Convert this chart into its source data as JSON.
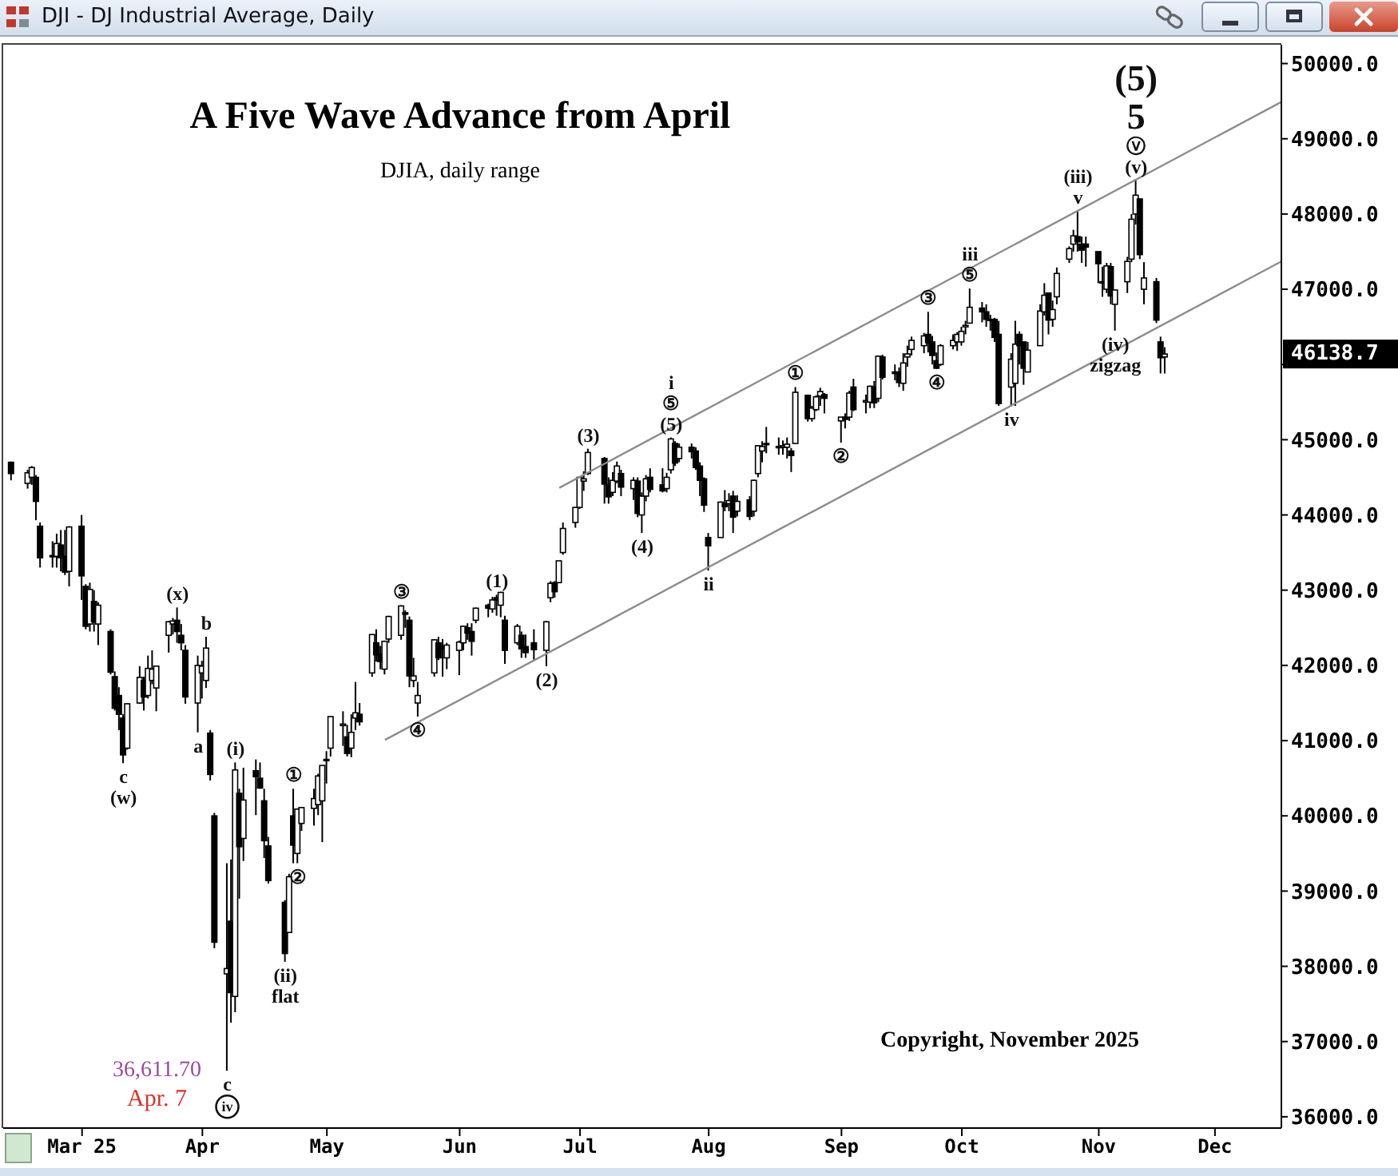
{
  "chart_data": {
    "type": "candlestick",
    "title": "A Five Wave Advance from April",
    "subtitle": "DJIA, daily range",
    "color": "#000000",
    "x": [
      "2025-02-14",
      "2025-02-18",
      "2025-02-19",
      "2025-02-20",
      "2025-02-21",
      "2025-02-24",
      "2025-02-25",
      "2025-02-26",
      "2025-02-27",
      "2025-02-28",
      "2025-03-03",
      "2025-03-04",
      "2025-03-05",
      "2025-03-06",
      "2025-03-07",
      "2025-03-10",
      "2025-03-11",
      "2025-03-12",
      "2025-03-13",
      "2025-03-14",
      "2025-03-17",
      "2025-03-18",
      "2025-03-19",
      "2025-03-20",
      "2025-03-21",
      "2025-03-24",
      "2025-03-25",
      "2025-03-26",
      "2025-03-27",
      "2025-03-28",
      "2025-03-31",
      "2025-04-01",
      "2025-04-02",
      "2025-04-03",
      "2025-04-04",
      "2025-04-07",
      "2025-04-08",
      "2025-04-09",
      "2025-04-10",
      "2025-04-11",
      "2025-04-14",
      "2025-04-15",
      "2025-04-16",
      "2025-04-17",
      "2025-04-21",
      "2025-04-22",
      "2025-04-23",
      "2025-04-24",
      "2025-04-25",
      "2025-04-28",
      "2025-04-29",
      "2025-04-30",
      "2025-05-01",
      "2025-05-02",
      "2025-05-05",
      "2025-05-06",
      "2025-05-07",
      "2025-05-08",
      "2025-05-09",
      "2025-05-12",
      "2025-05-13",
      "2025-05-14",
      "2025-05-15",
      "2025-05-16",
      "2025-05-19",
      "2025-05-20",
      "2025-05-21",
      "2025-05-22",
      "2025-05-23",
      "2025-05-27",
      "2025-05-28",
      "2025-05-29",
      "2025-05-30",
      "2025-06-02",
      "2025-06-03",
      "2025-06-04",
      "2025-06-05",
      "2025-06-06",
      "2025-06-09",
      "2025-06-10",
      "2025-06-11",
      "2025-06-12",
      "2025-06-13",
      "2025-06-16",
      "2025-06-17",
      "2025-06-18",
      "2025-06-20",
      "2025-06-23",
      "2025-06-24",
      "2025-06-25",
      "2025-06-26",
      "2025-06-27",
      "2025-06-30",
      "2025-07-01",
      "2025-07-02",
      "2025-07-03",
      "2025-07-07",
      "2025-07-08",
      "2025-07-09",
      "2025-07-10",
      "2025-07-11",
      "2025-07-14",
      "2025-07-15",
      "2025-07-16",
      "2025-07-17",
      "2025-07-18",
      "2025-07-21",
      "2025-07-22",
      "2025-07-23",
      "2025-07-24",
      "2025-07-25",
      "2025-07-28",
      "2025-07-29",
      "2025-07-30",
      "2025-07-31",
      "2025-08-01",
      "2025-08-04",
      "2025-08-05",
      "2025-08-06",
      "2025-08-07",
      "2025-08-08",
      "2025-08-11",
      "2025-08-12",
      "2025-08-13",
      "2025-08-14",
      "2025-08-15",
      "2025-08-18",
      "2025-08-19",
      "2025-08-20",
      "2025-08-21",
      "2025-08-22",
      "2025-08-25",
      "2025-08-26",
      "2025-08-27",
      "2025-08-28",
      "2025-08-29",
      "2025-09-02",
      "2025-09-03",
      "2025-09-04",
      "2025-09-05",
      "2025-09-08",
      "2025-09-09",
      "2025-09-10",
      "2025-09-11",
      "2025-09-12",
      "2025-09-15",
      "2025-09-16",
      "2025-09-17",
      "2025-09-18",
      "2025-09-19",
      "2025-09-22",
      "2025-09-23",
      "2025-09-24",
      "2025-09-25",
      "2025-09-26",
      "2025-09-29",
      "2025-09-30",
      "2025-10-01",
      "2025-10-02",
      "2025-10-03",
      "2025-10-06",
      "2025-10-07",
      "2025-10-08",
      "2025-10-09",
      "2025-10-10",
      "2025-10-13",
      "2025-10-14",
      "2025-10-15",
      "2025-10-16",
      "2025-10-17",
      "2025-10-20",
      "2025-10-21",
      "2025-10-22",
      "2025-10-23",
      "2025-10-24",
      "2025-10-27",
      "2025-10-28",
      "2025-10-29",
      "2025-10-30",
      "2025-10-31",
      "2025-11-03",
      "2025-11-04",
      "2025-11-05",
      "2025-11-06",
      "2025-11-07",
      "2025-11-10",
      "2025-11-11",
      "2025-11-12",
      "2025-11-13",
      "2025-11-14",
      "2025-11-17",
      "2025-11-18",
      "2025-11-19"
    ],
    "ohlc": [
      [
        44700,
        44710,
        44460,
        44550
      ],
      [
        44420,
        44600,
        44350,
        44560
      ],
      [
        44500,
        44650,
        44400,
        44630
      ],
      [
        44500,
        44530,
        43930,
        44180
      ],
      [
        43850,
        43900,
        43300,
        43430
      ],
      [
        43450,
        43650,
        43300,
        43460
      ],
      [
        43450,
        43750,
        43300,
        43620
      ],
      [
        43600,
        43800,
        43250,
        43430
      ],
      [
        43450,
        43800,
        43200,
        43240
      ],
      [
        43250,
        43850,
        43050,
        43840
      ],
      [
        43850,
        44000,
        42870,
        43190
      ],
      [
        43050,
        43080,
        42480,
        42520
      ],
      [
        42550,
        43100,
        42450,
        43010
      ],
      [
        42850,
        43000,
        42450,
        42580
      ],
      [
        42550,
        42840,
        42270,
        42800
      ],
      [
        42450,
        42480,
        41880,
        41910
      ],
      [
        41850,
        41920,
        41400,
        41430
      ],
      [
        41600,
        41710,
        41140,
        41350
      ],
      [
        41300,
        41350,
        40700,
        40810
      ],
      [
        40900,
        41500,
        40880,
        41490
      ],
      [
        41500,
        41990,
        41490,
        41840
      ],
      [
        41800,
        41850,
        41400,
        41580
      ],
      [
        41600,
        42130,
        41560,
        41960
      ],
      [
        41800,
        42200,
        41750,
        41950
      ],
      [
        41700,
        41990,
        41390,
        41990
      ],
      [
        42400,
        42590,
        42170,
        42580
      ],
      [
        42550,
        42630,
        42410,
        42590
      ],
      [
        42600,
        42770,
        42300,
        42450
      ],
      [
        42400,
        42550,
        42200,
        42300
      ],
      [
        42200,
        42270,
        41490,
        41580
      ],
      [
        41500,
        42130,
        41110,
        42000
      ],
      [
        41900,
        42060,
        41560,
        41990
      ],
      [
        41800,
        42380,
        41700,
        42230
      ],
      [
        41100,
        41140,
        40470,
        40550
      ],
      [
        40000,
        40040,
        38240,
        38320
      ],
      [
        37900,
        39370,
        36611.7,
        37970
      ],
      [
        38600,
        39420,
        37250,
        37650
      ],
      [
        37600,
        40710,
        37390,
        40610
      ],
      [
        40300,
        40360,
        38900,
        39590
      ],
      [
        39700,
        40640,
        39400,
        40210
      ],
      [
        40600,
        40750,
        40010,
        40520
      ],
      [
        40500,
        40710,
        40360,
        40370
      ],
      [
        40200,
        40360,
        39440,
        39670
      ],
      [
        39600,
        39720,
        39100,
        39140
      ],
      [
        38850,
        38880,
        38060,
        38170
      ],
      [
        38450,
        39230,
        38450,
        39190
      ],
      [
        40000,
        40360,
        39370,
        39610
      ],
      [
        39500,
        40100,
        39370,
        40090
      ],
      [
        39900,
        40120,
        39800,
        40110
      ],
      [
        40100,
        40360,
        39870,
        40230
      ],
      [
        40150,
        40560,
        40010,
        40530
      ],
      [
        40200,
        40670,
        39650,
        40670
      ],
      [
        40750,
        40860,
        40430,
        40750
      ],
      [
        40900,
        41320,
        40790,
        41320
      ],
      [
        41200,
        41390,
        40930,
        41220
      ],
      [
        41050,
        41210,
        40790,
        40830
      ],
      [
        40900,
        41350,
        40780,
        41110
      ],
      [
        41300,
        41780,
        41140,
        41370
      ],
      [
        41350,
        41500,
        41200,
        41250
      ],
      [
        41900,
        42410,
        41850,
        42410
      ],
      [
        42300,
        42480,
        42050,
        42140
      ],
      [
        42150,
        42260,
        41950,
        42050
      ],
      [
        41950,
        42330,
        41880,
        42320
      ],
      [
        42350,
        42660,
        42300,
        42650
      ],
      [
        42400,
        42800,
        42340,
        42790
      ],
      [
        42700,
        42730,
        42500,
        42680
      ],
      [
        42600,
        42650,
        41710,
        41860
      ],
      [
        41800,
        42100,
        41710,
        41860
      ],
      [
        41500,
        41780,
        41320,
        41600
      ],
      [
        41900,
        42350,
        41850,
        42340
      ],
      [
        42300,
        42380,
        42070,
        42100
      ],
      [
        42250,
        42350,
        41850,
        42220
      ],
      [
        42100,
        42300,
        41950,
        42270
      ],
      [
        42200,
        42330,
        41870,
        42310
      ],
      [
        42300,
        42530,
        42200,
        42520
      ],
      [
        42500,
        42560,
        42340,
        42430
      ],
      [
        42450,
        42560,
        42130,
        42320
      ],
      [
        42600,
        42770,
        42560,
        42760
      ],
      [
        42800,
        42820,
        42640,
        42760
      ],
      [
        42750,
        42910,
        42700,
        42870
      ],
      [
        42900,
        42940,
        42660,
        42870
      ],
      [
        42800,
        42980,
        42640,
        42970
      ],
      [
        42600,
        42660,
        42020,
        42200
      ],
      [
        42300,
        42550,
        42270,
        42520
      ],
      [
        42400,
        42450,
        42100,
        42220
      ],
      [
        42250,
        42410,
        42100,
        42170
      ],
      [
        42300,
        42480,
        42060,
        42210
      ],
      [
        42200,
        42590,
        41990,
        42580
      ],
      [
        42900,
        43120,
        42840,
        43090
      ],
      [
        43100,
        43120,
        42900,
        42980
      ],
      [
        43100,
        43390,
        43100,
        43390
      ],
      [
        43500,
        43900,
        43470,
        43820
      ],
      [
        43900,
        44100,
        43830,
        44100
      ],
      [
        44100,
        44500,
        44080,
        44500
      ],
      [
        44450,
        44580,
        44320,
        44480
      ],
      [
        44550,
        44880,
        44530,
        44830
      ],
      [
        44750,
        44770,
        44150,
        44410
      ],
      [
        44400,
        44500,
        44150,
        44240
      ],
      [
        44300,
        44570,
        44250,
        44460
      ],
      [
        44450,
        44710,
        44420,
        44650
      ],
      [
        44550,
        44600,
        44250,
        44370
      ],
      [
        44350,
        44500,
        44200,
        44460
      ],
      [
        44450,
        44500,
        43970,
        44020
      ],
      [
        44000,
        44300,
        43760,
        44250
      ],
      [
        44250,
        44530,
        44180,
        44480
      ],
      [
        44500,
        44620,
        44300,
        44340
      ],
      [
        44400,
        44620,
        44300,
        44320
      ],
      [
        44350,
        44560,
        44300,
        44500
      ],
      [
        44600,
        45030,
        44550,
        45010
      ],
      [
        44950,
        44980,
        44650,
        44690
      ],
      [
        44750,
        44950,
        44700,
        44900
      ],
      [
        44900,
        44950,
        44750,
        44840
      ],
      [
        44850,
        44900,
        44600,
        44630
      ],
      [
        44650,
        44700,
        44250,
        44460
      ],
      [
        44480,
        44500,
        44040,
        44130
      ],
      [
        43700,
        43760,
        43260,
        43590
      ],
      [
        43700,
        44180,
        43700,
        44170
      ],
      [
        44150,
        44330,
        44050,
        44110
      ],
      [
        44150,
        44290,
        44050,
        44190
      ],
      [
        44250,
        44320,
        43760,
        43970
      ],
      [
        44050,
        44260,
        43980,
        44180
      ],
      [
        44200,
        44250,
        43930,
        43980
      ],
      [
        44050,
        44470,
        43980,
        44460
      ],
      [
        44550,
        44930,
        44500,
        44920
      ],
      [
        44850,
        44980,
        44700,
        44910
      ],
      [
        44950,
        45170,
        44820,
        44950
      ],
      [
        44900,
        45030,
        44800,
        44910
      ],
      [
        44900,
        44990,
        44800,
        44920
      ],
      [
        44900,
        45030,
        44750,
        44940
      ],
      [
        44850,
        44890,
        44570,
        44790
      ],
      [
        44950,
        45700,
        44950,
        45630
      ],
      [
        45590,
        45600,
        45240,
        45280
      ],
      [
        45280,
        45450,
        45240,
        45420
      ],
      [
        45400,
        45590,
        45380,
        45570
      ],
      [
        45580,
        45690,
        45450,
        45640
      ],
      [
        45600,
        45620,
        45350,
        45550
      ],
      [
        45250,
        45300,
        44960,
        45300
      ],
      [
        45300,
        45350,
        45150,
        45270
      ],
      [
        45300,
        45650,
        45250,
        45620
      ],
      [
        45700,
        45810,
        45380,
        45400
      ],
      [
        45500,
        45600,
        45350,
        45520
      ],
      [
        45500,
        45720,
        45420,
        45710
      ],
      [
        45700,
        45780,
        45420,
        45490
      ],
      [
        45550,
        46120,
        45500,
        46110
      ],
      [
        46100,
        46130,
        45800,
        45830
      ],
      [
        45900,
        46000,
        45790,
        45880
      ],
      [
        45900,
        45960,
        45700,
        45760
      ],
      [
        45750,
        46150,
        45650,
        46020
      ],
      [
        46100,
        46250,
        45970,
        46140
      ],
      [
        46200,
        46370,
        46120,
        46320
      ],
      [
        46250,
        46420,
        46150,
        46380
      ],
      [
        46400,
        46700,
        46160,
        46290
      ],
      [
        46300,
        46380,
        46000,
        46120
      ],
      [
        46050,
        46160,
        45940,
        45950
      ],
      [
        46000,
        46270,
        45980,
        46250
      ],
      [
        46250,
        46400,
        46200,
        46320
      ],
      [
        46300,
        46430,
        46180,
        46400
      ],
      [
        46300,
        46500,
        46250,
        46440
      ],
      [
        46500,
        46580,
        46400,
        46520
      ],
      [
        46550,
        47010,
        46550,
        46760
      ],
      [
        46750,
        46830,
        46560,
        46700
      ],
      [
        46700,
        46800,
        46500,
        46600
      ],
      [
        46600,
        46660,
        46450,
        46600
      ],
      [
        46600,
        46620,
        46300,
        46360
      ],
      [
        46400,
        46580,
        45450,
        45480
      ],
      [
        45700,
        46150,
        45450,
        46070
      ],
      [
        45750,
        46580,
        45450,
        46270
      ],
      [
        46400,
        46440,
        46000,
        46250
      ],
      [
        46300,
        46300,
        45730,
        45950
      ],
      [
        45900,
        46300,
        45900,
        46190
      ],
      [
        46250,
        46800,
        46250,
        46710
      ],
      [
        46700,
        47080,
        46650,
        46920
      ],
      [
        46950,
        46950,
        46400,
        46590
      ],
      [
        46600,
        46850,
        46500,
        46730
      ],
      [
        46900,
        47290,
        46800,
        47210
      ],
      [
        47400,
        47570,
        47350,
        47540
      ],
      [
        47600,
        47790,
        47500,
        47710
      ],
      [
        47700,
        48040,
        47500,
        47630
      ],
      [
        47600,
        47700,
        47350,
        47520
      ],
      [
        47600,
        47700,
        47300,
        47560
      ],
      [
        47500,
        47500,
        47080,
        47340
      ],
      [
        47100,
        47300,
        46900,
        47090
      ],
      [
        47000,
        47350,
        46950,
        47310
      ],
      [
        47300,
        47350,
        46800,
        46910
      ],
      [
        46800,
        46990,
        46450,
        46990
      ],
      [
        47100,
        47430,
        46950,
        47370
      ],
      [
        47400,
        48000,
        47360,
        47930
      ],
      [
        48000,
        48450,
        47860,
        48250
      ],
      [
        48200,
        48210,
        47400,
        47460
      ],
      [
        47000,
        47360,
        46800,
        47150
      ],
      [
        47100,
        47150,
        46550,
        46590
      ],
      [
        46300,
        46370,
        45880,
        46090
      ],
      [
        46100,
        46230,
        45880,
        46138.7
      ]
    ],
    "series": [
      {
        "type": "line",
        "color": "#8c8c8c",
        "x": [
          "2025-06-26",
          "2025-12-17"
        ],
        "values": [
          44360,
          49490
        ]
      },
      {
        "type": "line",
        "color": "#8c8c8c",
        "x": [
          "2025-05-15",
          "2025-12-17"
        ],
        "values": [
          41010,
          47370
        ]
      }
    ],
    "xlim": [
      "2025-02-12",
      "2025-12-17"
    ],
    "xticks": [
      {
        "value": "2025-03-03",
        "label": "Mar 25"
      },
      {
        "value": "2025-04-01",
        "label": "Apr"
      },
      {
        "value": "2025-05-01",
        "label": "May"
      },
      {
        "value": "2025-06-02",
        "label": "Jun"
      },
      {
        "value": "2025-07-01",
        "label": "Jul"
      },
      {
        "value": "2025-08-01",
        "label": "Aug"
      },
      {
        "value": "2025-09-02",
        "label": "Sep"
      },
      {
        "value": "2025-10-01",
        "label": "Oct"
      },
      {
        "value": "2025-11-03",
        "label": "Nov"
      },
      {
        "value": "2025-12-01",
        "label": "Dec"
      }
    ],
    "ylim": [
      35850,
      50250
    ],
    "yticks": [
      {
        "value": 36000,
        "label": "36000.0"
      },
      {
        "value": 37000,
        "label": "37000.0"
      },
      {
        "value": 38000,
        "label": "38000.0"
      },
      {
        "value": 39000,
        "label": "39000.0"
      },
      {
        "value": 40000,
        "label": "40000.0"
      },
      {
        "value": 41000,
        "label": "41000.0"
      },
      {
        "value": 42000,
        "label": "42000.0"
      },
      {
        "value": 43000,
        "label": "43000.0"
      },
      {
        "value": 44000,
        "label": "44000.0"
      },
      {
        "value": 45000,
        "label": "45000.0"
      },
      {
        "value": 46000,
        "label": null
      },
      {
        "value": 47000,
        "label": "47000.0"
      },
      {
        "value": 48000,
        "label": "48000.0"
      },
      {
        "value": 49000,
        "label": "49000.0"
      },
      {
        "value": 50000,
        "label": "50000.0"
      }
    ],
    "annotations": [
      "DJI - DJ Industrial Average, Daily",
      "Copyright, November 2025",
      "46138.7",
      {
        "text": "36,611.70",
        "x": "2025-04-07",
        "y": 36611.7
      },
      {
        "text": "Apr. 7",
        "x": "2025-04-07",
        "y": 36611.7
      },
      {
        "text": "(v)",
        "x": "2025-11-12",
        "y": 48450
      },
      {
        "text": "ⓥ",
        "x": "2025-11-12",
        "y": 48450
      },
      {
        "text": "5",
        "x": "2025-11-12",
        "y": 48450
      },
      {
        "text": "(5)",
        "x": "2025-11-12",
        "y": 48450
      },
      {
        "text": "(x)",
        "x": "2025-03-26",
        "y": 42770
      },
      {
        "text": "b",
        "x": "2025-04-02",
        "y": 42380
      },
      {
        "text": "a",
        "x": "2025-03-31",
        "y": 41110
      },
      {
        "text": "c",
        "x": "2025-03-13",
        "y": 40700
      },
      {
        "text": "(w)",
        "x": "2025-03-13",
        "y": 40700
      },
      {
        "text": "(i)",
        "x": "2025-04-09",
        "y": 40710
      },
      {
        "text": "①",
        "x": "2025-04-23",
        "y": 40360
      },
      {
        "text": "②",
        "x": "2025-04-24",
        "y": 39370
      },
      {
        "text": "(ii)",
        "x": "2025-04-21",
        "y": 38060
      },
      {
        "text": "flat",
        "x": "2025-04-21",
        "y": 38060
      },
      {
        "text": "c",
        "x": "2025-04-07",
        "y": 36611.7
      },
      {
        "text": "iv",
        "x": "2025-04-07",
        "y": 36611.7
      },
      {
        "text": "③",
        "x": "2025-05-19",
        "y": 42800
      },
      {
        "text": "④",
        "x": "2025-05-23",
        "y": 41320
      },
      {
        "text": "(1)",
        "x": "2025-06-11",
        "y": 42940
      },
      {
        "text": "(2)",
        "x": "2025-06-23",
        "y": 41990
      },
      {
        "text": "(3)",
        "x": "2025-07-03",
        "y": 44880
      },
      {
        "text": "(4)",
        "x": "2025-07-16",
        "y": 43760
      },
      {
        "text": "(5)",
        "x": "2025-07-23",
        "y": 45030
      },
      {
        "text": "⑤",
        "x": "2025-07-23",
        "y": 45030
      },
      {
        "text": "i",
        "x": "2025-07-23",
        "y": 45030
      },
      {
        "text": "ii",
        "x": "2025-08-01",
        "y": 43260
      },
      {
        "text": "①",
        "x": "2025-08-22",
        "y": 45700
      },
      {
        "text": "②",
        "x": "2025-09-02",
        "y": 44960
      },
      {
        "text": "③",
        "x": "2025-09-23",
        "y": 46700
      },
      {
        "text": "④",
        "x": "2025-09-25",
        "y": 45940
      },
      {
        "text": "⑤",
        "x": "2025-10-03",
        "y": 47010
      },
      {
        "text": "iii",
        "x": "2025-10-03",
        "y": 47010
      },
      {
        "text": "iv",
        "x": "2025-10-13",
        "y": 45450
      },
      {
        "text": "v",
        "x": "2025-10-29",
        "y": 48040
      },
      {
        "text": "(iii)",
        "x": "2025-10-29",
        "y": 48040
      },
      {
        "text": "(iv)",
        "x": "2025-11-07",
        "y": 46450
      },
      {
        "text": "zigzag",
        "x": "2025-11-07",
        "y": 46450
      }
    ]
  }
}
